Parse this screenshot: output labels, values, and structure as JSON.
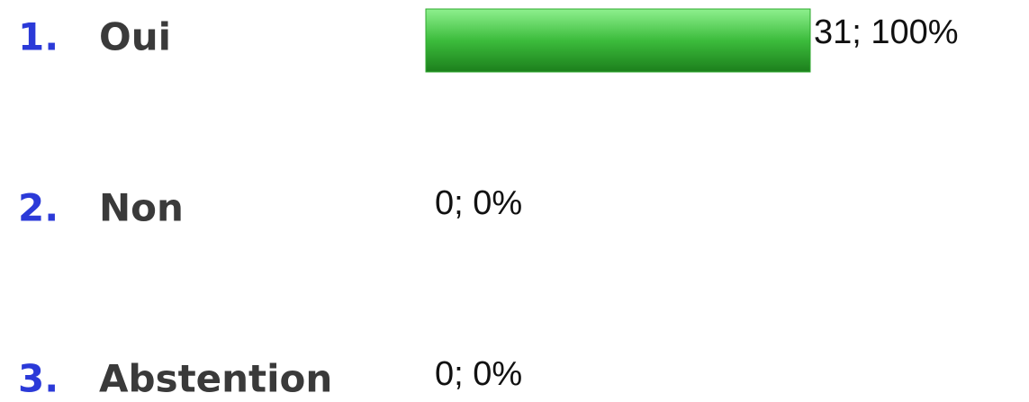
{
  "chart_data": {
    "type": "bar",
    "orientation": "horizontal",
    "numbers": [
      "1.",
      "2.",
      "3."
    ],
    "categories": [
      "Oui",
      "Non",
      "Abstention"
    ],
    "values": [
      31,
      0,
      0
    ],
    "value_labels": [
      "31; 100%",
      "0; 0%",
      "0; 0%"
    ],
    "color": "#2fa82f"
  }
}
